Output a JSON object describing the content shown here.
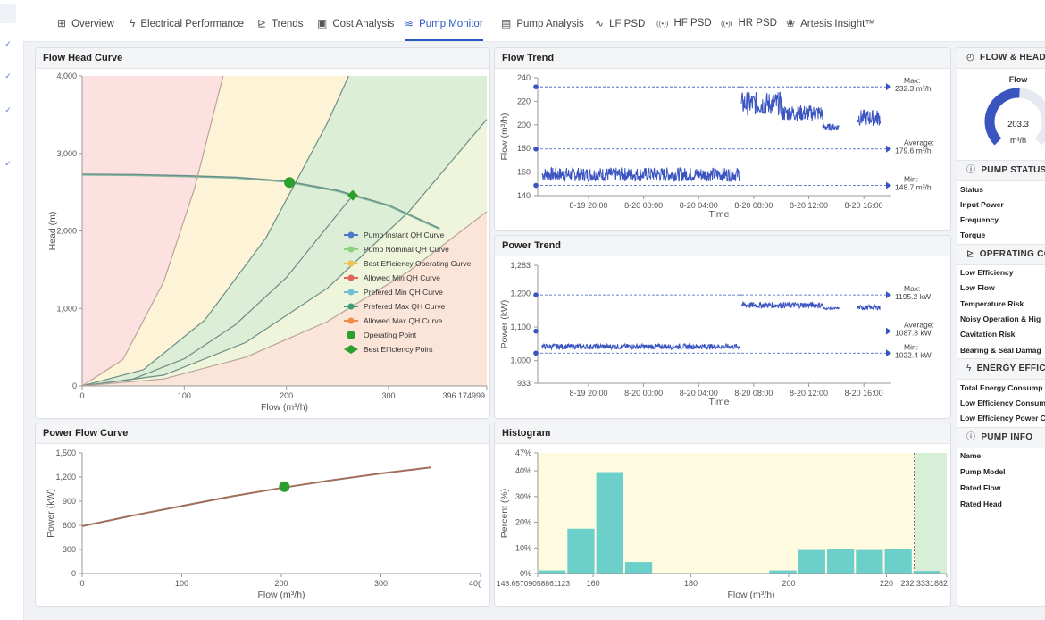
{
  "tabs": [
    {
      "label": "Overview",
      "icon": "grid-icon",
      "glyph": "⊞",
      "active": false
    },
    {
      "label": "Electrical Performance",
      "icon": "bolt-icon",
      "glyph": "ϟ",
      "active": false
    },
    {
      "label": "Trends",
      "icon": "line-chart-icon",
      "glyph": "⊵",
      "active": false
    },
    {
      "label": "Cost Analysis",
      "icon": "calculator-icon",
      "glyph": "▣",
      "active": false
    },
    {
      "label": "Pump Monitor",
      "icon": "waves-icon",
      "glyph": "≋",
      "active": true
    },
    {
      "label": "Pump Analysis",
      "icon": "document-icon",
      "glyph": "▤",
      "active": false
    },
    {
      "label": "LF PSD",
      "icon": "pulse-icon",
      "glyph": "∿",
      "active": false
    },
    {
      "label": "HF PSD",
      "icon": "signal-icon",
      "glyph": "((•))",
      "active": false
    },
    {
      "label": "HR PSD",
      "icon": "signal-icon",
      "glyph": "((•))",
      "active": false
    },
    {
      "label": "Artesis Insight™",
      "icon": "insight-icon",
      "glyph": "❀",
      "active": false
    }
  ],
  "colors": {
    "accent": "#2b59c3",
    "trend_line": "#3a55c0",
    "zone_red": "#fde1e1",
    "zone_yellow": "#fdf4d7",
    "zone_green": "#dcefd6",
    "zone_lightgreen": "#eef5da",
    "zone_peach": "#fbe4d8",
    "histogram_bar": "#6dcfc9",
    "histogram_bg": "#fffbe0",
    "histogram_green": "#d7efd6",
    "operating_point": "#2ca02c",
    "curve_pump": "#6a8f8a",
    "power_curve": "#a06e5a"
  },
  "cards": {
    "flow_head_title": "Flow Head Curve",
    "flow_trend_title": "Flow Trend",
    "power_trend_title": "Power Trend",
    "power_flow_title": "Power Flow Curve",
    "histogram_title": "Histogram"
  },
  "right_panel": {
    "flow_head": {
      "title": "FLOW & HEAD",
      "icon": "gauge-icon",
      "gauge_label": "Flow",
      "value": "203.3",
      "unit": "m³/h",
      "fraction": 0.51
    },
    "pump_status": {
      "title": "PUMP STATUS",
      "icon": "info-icon",
      "rows": [
        "Status",
        "Input Power",
        "Frequency",
        "Torque"
      ]
    },
    "operating_conditions": {
      "title": "OPERATING CO",
      "icon": "line-chart-icon",
      "rows": [
        "Low Efficiency",
        "Low Flow",
        "Temperature Risk",
        "Noisy Operation & Hig",
        "Cavitation Risk",
        "Bearing & Seal Damag"
      ]
    },
    "energy_efficiency": {
      "title": "ENERGY EFFICI",
      "icon": "bolt-icon",
      "rows": [
        "Total Energy Consump",
        "Low Efficiency Consum",
        "Low Efficiency Power C"
      ]
    },
    "pump_info": {
      "title": "PUMP INFO",
      "icon": "info-icon",
      "rows": [
        "Name",
        "Pump Model",
        "Rated Flow",
        "Rated Head"
      ]
    }
  },
  "chart_data": [
    {
      "id": "flow_head_curve",
      "type": "line",
      "title": "Flow Head Curve",
      "xlabel": "Flow (m³/h)",
      "ylabel": "Head (m)",
      "xlim": [
        0,
        396.174999
      ],
      "ylim": [
        0,
        4000
      ],
      "xticks": [
        "0",
        "100",
        "200",
        "300",
        "396.174999"
      ],
      "yticks": [
        "0",
        "1,000",
        "2,000",
        "3,000",
        "4,000"
      ],
      "legend_position": "center-right",
      "series": [
        {
          "name": "Pump Instant QH Curve",
          "color": "#4f78c9",
          "x": [
            0,
            50,
            100,
            150,
            200,
            250,
            300,
            350
          ],
          "y": [
            2730,
            2725,
            2710,
            2690,
            2640,
            2520,
            2330,
            2030
          ]
        },
        {
          "name": "Pump Nominal QH Curve",
          "color": "#8ccf7e",
          "x": [
            0,
            50,
            100,
            150,
            200,
            250,
            300,
            350
          ],
          "y": [
            2720,
            2715,
            2700,
            2680,
            2630,
            2510,
            2320,
            2020
          ]
        },
        {
          "name": "Best Efficiency Operating Curve",
          "color": "#f2c14e",
          "x": [
            0,
            50,
            100,
            150,
            200,
            265
          ],
          "y": [
            0,
            90,
            350,
            790,
            1400,
            2460
          ]
        },
        {
          "name": "Allowed Min QH Curve",
          "color": "#e0645a",
          "x": [
            0,
            40,
            80,
            110,
            138
          ],
          "y": [
            0,
            340,
            1350,
            2550,
            4000
          ]
        },
        {
          "name": "Prefered Min QH Curve",
          "color": "#6fbfd0",
          "x": [
            0,
            60,
            120,
            180,
            240,
            261
          ],
          "y": [
            0,
            210,
            850,
            1910,
            3390,
            4000
          ]
        },
        {
          "name": "Prefered Max QH Curve",
          "color": "#3a9a7a",
          "x": [
            0,
            80,
            160,
            240,
            320,
            396.17
          ],
          "y": [
            0,
            140,
            560,
            1260,
            2250,
            3440
          ]
        },
        {
          "name": "Allowed Max QH Curve",
          "color": "#f08a4b",
          "x": [
            0,
            80,
            160,
            240,
            320,
            396.17
          ],
          "y": [
            0,
            90,
            370,
            830,
            1480,
            2250
          ]
        }
      ],
      "points": [
        {
          "name": "Operating Point",
          "x": 203,
          "y": 2625,
          "marker": "circle",
          "color": "#2ca02c"
        },
        {
          "name": "Best Efficiency Point",
          "x": 265,
          "y": 2460,
          "marker": "diamond",
          "color": "#2ca02c"
        }
      ]
    },
    {
      "id": "flow_trend",
      "type": "line",
      "title": "Flow Trend",
      "xlabel": "Time",
      "ylabel": "Flow (m³/h)",
      "ylim": [
        140,
        240
      ],
      "yticks": [
        "140",
        "160",
        "180",
        "200",
        "220",
        "240"
      ],
      "xticks": [
        "8-19 20:00",
        "8-20 00:00",
        "8-20 04:00",
        "8-20 08:00",
        "8-20 12:00",
        "8-20 16:00"
      ],
      "xrange_hours": [
        16.3,
        42.0
      ],
      "series": [
        {
          "name": "Flow",
          "segments": [
            {
              "from": 16.6,
              "to": 31.0,
              "level": 158,
              "noise": 6
            },
            {
              "from": 31.0,
              "to": 31.1,
              "level": 232.3,
              "noise": 0
            },
            {
              "from": 31.1,
              "to": 34.0,
              "level": 218,
              "noise": 10
            },
            {
              "from": 34.0,
              "to": 37.0,
              "level": 210,
              "noise": 7
            },
            {
              "from": 37.0,
              "to": 38.2,
              "level": 198,
              "noise": 3
            },
            {
              "from": 39.5,
              "to": 41.2,
              "level": 206,
              "noise": 7
            }
          ]
        }
      ],
      "markers": [
        {
          "label": "Max:",
          "value_text": "232.3 m³/h",
          "value": 232.3
        },
        {
          "label": "Average:",
          "value_text": "179.6 m³/h",
          "value": 179.6
        },
        {
          "label": "Min:",
          "value_text": "148.7 m³/h",
          "value": 148.7
        }
      ]
    },
    {
      "id": "power_trend",
      "type": "line",
      "title": "Power Trend",
      "xlabel": "Time",
      "ylabel": "Power (kW)",
      "ylim": [
        933,
        1283
      ],
      "yticks": [
        "933",
        "1,000",
        "1,100",
        "1,200",
        "1,283"
      ],
      "xticks": [
        "8-19 20:00",
        "8-20 00:00",
        "8-20 04:00",
        "8-20 08:00",
        "8-20 12:00",
        "8-20 16:00"
      ],
      "xrange_hours": [
        16.3,
        42.0
      ],
      "series": [
        {
          "name": "Power",
          "segments": [
            {
              "from": 16.6,
              "to": 31.0,
              "level": 1042,
              "noise": 8
            },
            {
              "from": 31.0,
              "to": 31.1,
              "level": 1195.2,
              "noise": 0
            },
            {
              "from": 31.1,
              "to": 37.0,
              "level": 1165,
              "noise": 9
            },
            {
              "from": 37.0,
              "to": 38.2,
              "level": 1155,
              "noise": 3
            },
            {
              "from": 39.5,
              "to": 41.2,
              "level": 1158,
              "noise": 7
            }
          ]
        }
      ],
      "markers": [
        {
          "label": "Max:",
          "value_text": "1195.2 kW",
          "value": 1195.2
        },
        {
          "label": "Average:",
          "value_text": "1087.8 kW",
          "value": 1087.8
        },
        {
          "label": "Min:",
          "value_text": "1022.4 kW",
          "value": 1022.4
        }
      ]
    },
    {
      "id": "power_flow_curve",
      "type": "line",
      "title": "Power Flow Curve",
      "xlabel": "Flow (m³/h)",
      "ylabel": "Power (kW)",
      "xlim": [
        0,
        400
      ],
      "ylim": [
        0,
        1500
      ],
      "xticks": [
        "0",
        "100",
        "200",
        "300",
        "40("
      ],
      "yticks": [
        "0",
        "300",
        "600",
        "900",
        "1,200",
        "1,500"
      ],
      "series": [
        {
          "name": "Power Curve",
          "x": [
            0,
            50,
            100,
            150,
            200,
            250,
            300,
            350
          ],
          "y": [
            590,
            720,
            840,
            960,
            1065,
            1160,
            1245,
            1320
          ]
        }
      ],
      "points": [
        {
          "name": "Operating Point",
          "x": 203,
          "y": 1080
        }
      ]
    },
    {
      "id": "histogram",
      "type": "bar",
      "title": "Histogram",
      "xlabel": "Flow (m³/h)",
      "ylabel": "Percent (%)",
      "ylim": [
        0,
        47
      ],
      "yticks": [
        "0%",
        "10%",
        "20%",
        "30%",
        "40%",
        "47%"
      ],
      "xlim": [
        148.65709058861123,
        232.33318818
      ],
      "xticks": [
        {
          "value": 148.65709058861123,
          "label": "148.65709058861123"
        },
        {
          "value": 160,
          "label": "160"
        },
        {
          "value": 180,
          "label": "180"
        },
        {
          "value": 200,
          "label": "200"
        },
        {
          "value": 220,
          "label": "220"
        },
        {
          "value": 232.33318818,
          "label": "232.3331882"
        }
      ],
      "bin_width": 5.9,
      "bins_start": [
        148.66,
        154.56,
        160.46,
        166.36,
        172.26,
        178.16,
        184.06,
        189.96,
        195.86,
        201.76,
        207.66,
        213.56,
        219.46,
        225.36
      ],
      "values": [
        1.2,
        17.5,
        39.5,
        4.5,
        0,
        0,
        0,
        0,
        1.2,
        9.2,
        9.5,
        9.2,
        9.5,
        1.0
      ],
      "green_band_from": 225.7
    }
  ]
}
